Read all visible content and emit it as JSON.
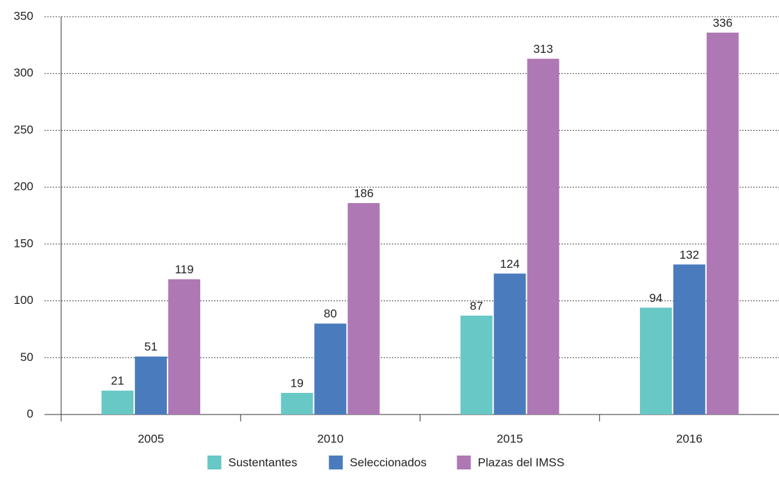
{
  "chart_data": {
    "type": "bar",
    "categories": [
      "2005",
      "2010",
      "2015",
      "2016"
    ],
    "series": [
      {
        "name": "Sustentantes",
        "color": "#67c8c5",
        "values": [
          21,
          19,
          87,
          94
        ]
      },
      {
        "name": "Seleccionados",
        "color": "#4a7bbd",
        "values": [
          51,
          80,
          124,
          132
        ]
      },
      {
        "name": "Plazas del IMSS",
        "color": "#ae78b4",
        "values": [
          119,
          186,
          313,
          336
        ]
      }
    ],
    "ylim": [
      0,
      350
    ],
    "yticks": [
      0,
      50,
      100,
      150,
      200,
      250,
      300,
      350
    ],
    "grid": true,
    "legend": "bottom"
  }
}
